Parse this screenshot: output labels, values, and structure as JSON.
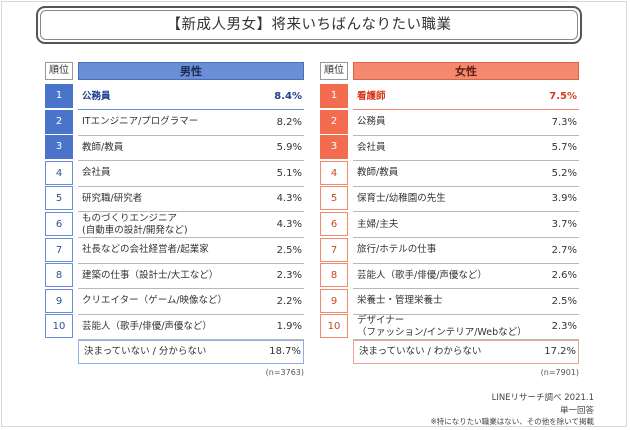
{
  "title": "【新成人男女】将来いちばんなりたい職業",
  "rank_header": "順位",
  "male": {
    "header": "男性",
    "rows": [
      {
        "rank": "1",
        "label": "公務員",
        "pct": "8.4%"
      },
      {
        "rank": "2",
        "label": "ITエンジニア/プログラマー",
        "pct": "8.2%"
      },
      {
        "rank": "3",
        "label": "教師/教員",
        "pct": "5.9%"
      },
      {
        "rank": "4",
        "label": "会社員",
        "pct": "5.1%"
      },
      {
        "rank": "5",
        "label": "研究職/研究者",
        "pct": "4.3%"
      },
      {
        "rank": "6",
        "label": "ものづくりエンジニア\n(自動車の設計/開発など)",
        "pct": "4.3%"
      },
      {
        "rank": "7",
        "label": "社長などの会社経営者/起業家",
        "pct": "2.5%"
      },
      {
        "rank": "8",
        "label": "建築の仕事（設計士/大工など）",
        "pct": "2.3%"
      },
      {
        "rank": "9",
        "label": "クリエイター（ゲーム/映像など）",
        "pct": "2.2%"
      },
      {
        "rank": "10",
        "label": "芸能人（歌手/俳優/声優など）",
        "pct": "1.9%"
      }
    ],
    "undecided": {
      "label": "決まっていない / 分からない",
      "pct": "18.7%"
    },
    "n": "(n=3763)"
  },
  "female": {
    "header": "女性",
    "rows": [
      {
        "rank": "1",
        "label": "看護師",
        "pct": "7.5%"
      },
      {
        "rank": "2",
        "label": "公務員",
        "pct": "7.3%"
      },
      {
        "rank": "3",
        "label": "会社員",
        "pct": "5.7%"
      },
      {
        "rank": "4",
        "label": "教師/教員",
        "pct": "5.2%"
      },
      {
        "rank": "5",
        "label": "保育士/幼稚園の先生",
        "pct": "3.9%"
      },
      {
        "rank": "6",
        "label": "主婦/主夫",
        "pct": "3.7%"
      },
      {
        "rank": "7",
        "label": "旅行/ホテルの仕事",
        "pct": "2.7%"
      },
      {
        "rank": "8",
        "label": "芸能人（歌手/俳優/声優など）",
        "pct": "2.6%"
      },
      {
        "rank": "9",
        "label": "栄養士・管理栄養士",
        "pct": "2.5%"
      },
      {
        "rank": "10",
        "label": "デザイナー\n（ファッション/インテリア/Webなど）",
        "pct": "2.3%"
      }
    ],
    "undecided": {
      "label": "決まっていない / わからない",
      "pct": "17.2%"
    },
    "n": "(n=7901)"
  },
  "credits": {
    "source": "LINEリサーチ調べ 2021.1",
    "type": "単一回答",
    "note": "※特になりたい職業はない、その他を除いて掲載"
  },
  "colors": {
    "male_accent": "#4a74c9",
    "female_accent": "#f26d4f"
  }
}
